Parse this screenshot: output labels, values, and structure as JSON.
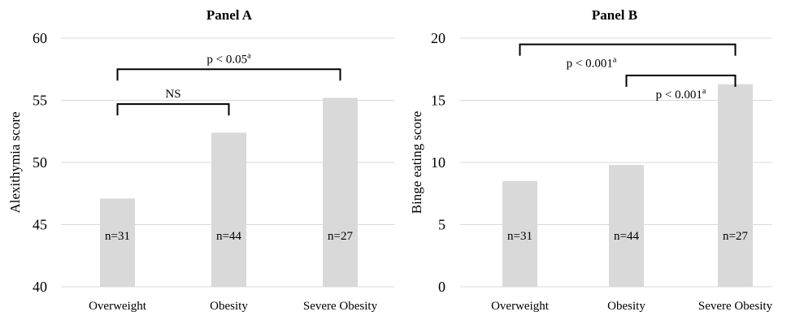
{
  "chart_data": [
    {
      "type": "bar",
      "title": "Panel A",
      "ylabel": "Alexithymia score",
      "xlabel": "",
      "categories": [
        "Overweight",
        "Obesity",
        "Severe Obesity"
      ],
      "values": [
        47.1,
        52.4,
        55.2
      ],
      "n_labels": [
        "n=31",
        "n=44",
        "n=27"
      ],
      "ylim": [
        40,
        60
      ],
      "yticks": [
        40,
        45,
        50,
        55,
        60
      ],
      "grid": true,
      "bar_color": "#d9d9d9",
      "annotations": [
        {
          "text": "NS",
          "superscript": "",
          "from": "Overweight",
          "to": "Obesity",
          "level": 54.7
        },
        {
          "text": "p < 0.05",
          "superscript": "a",
          "from": "Overweight",
          "to": "Severe Obesity",
          "level": 57.5
        }
      ]
    },
    {
      "type": "bar",
      "title": "Panel B",
      "ylabel": "Binge eating score",
      "xlabel": "",
      "categories": [
        "Overweight",
        "Obesity",
        "Severe Obesity"
      ],
      "values": [
        8.5,
        9.8,
        16.3
      ],
      "n_labels": [
        "n=31",
        "n=44",
        "n=27"
      ],
      "ylim": [
        0,
        20
      ],
      "yticks": [
        0,
        5,
        10,
        15,
        20
      ],
      "grid": true,
      "bar_color": "#d9d9d9",
      "annotations": [
        {
          "text": "p < 0.001",
          "superscript": "a",
          "from": "Overweight",
          "to": "Severe Obesity",
          "level": 19.5
        },
        {
          "text": "p < 0.001",
          "superscript": "a",
          "from": "Obesity",
          "to": "Severe Obesity",
          "level": 17.0
        }
      ]
    }
  ]
}
